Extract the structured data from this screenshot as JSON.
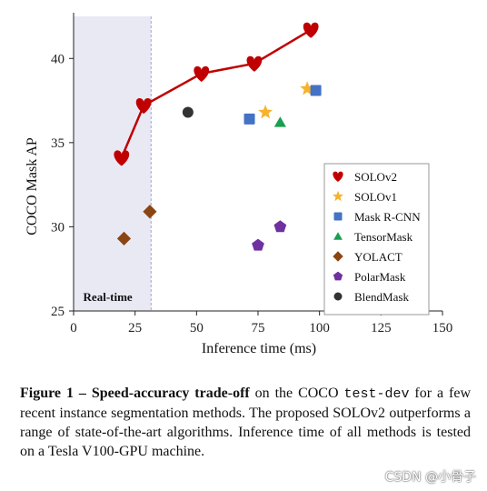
{
  "chart_data": {
    "type": "scatter",
    "xlabel": "Inference time (ms)",
    "ylabel": "COCO Mask AP",
    "xlim": [
      0,
      150
    ],
    "ylim": [
      25,
      42.5
    ],
    "xticks": [
      0,
      25,
      50,
      75,
      100,
      125,
      150
    ],
    "yticks": [
      25,
      30,
      35,
      40
    ],
    "grid": false,
    "legend_position": "right",
    "shaded_region": {
      "x_start": 0,
      "x_end": 31.5,
      "label": "Real-time",
      "fill": "#e9e9f4",
      "edge": "#9aa6d8"
    },
    "series": [
      {
        "name": "SOLOv2",
        "marker": "heart",
        "color": "#c00000",
        "line": true,
        "points": [
          [
            19.5,
            34.1
          ],
          [
            28.5,
            37.2
          ],
          [
            52.0,
            39.1
          ],
          [
            73.5,
            39.7
          ],
          [
            96.5,
            41.7
          ]
        ]
      },
      {
        "name": "SOLOv1",
        "marker": "star",
        "color": "#f7b32b",
        "points": [
          [
            78.0,
            36.8
          ],
          [
            95.0,
            38.2
          ]
        ]
      },
      {
        "name": "Mask R-CNN",
        "marker": "square",
        "color": "#4472c4",
        "points": [
          [
            71.5,
            36.4
          ],
          [
            98.5,
            38.1
          ]
        ]
      },
      {
        "name": "TensorMask",
        "marker": "triangle",
        "color": "#1a9e50",
        "points": [
          [
            84.0,
            36.2
          ]
        ]
      },
      {
        "name": "YOLACT",
        "marker": "diamond",
        "color": "#8b4513",
        "points": [
          [
            20.5,
            29.3
          ],
          [
            31.0,
            30.9
          ]
        ]
      },
      {
        "name": "PolarMask",
        "marker": "pentagon",
        "color": "#7030a0",
        "points": [
          [
            75.0,
            28.9
          ],
          [
            84.0,
            30.0
          ]
        ]
      },
      {
        "name": "BlendMask",
        "marker": "circle",
        "color": "#333333",
        "points": [
          [
            46.5,
            36.8
          ]
        ]
      }
    ]
  },
  "caption": {
    "figure_label": "Figure 1",
    "dash": " – ",
    "bold_title": "Speed-accuracy trade-off",
    "text_1": " on the COCO ",
    "mono_text": "test-dev",
    "text_2": " for a few recent instance segmentation methods. The proposed SOLOv2 outperforms a range of state-of-the-art algorithms. Inference time of all methods is tested on a Tesla V100-GPU machine."
  },
  "watermark": "CSDN @小骨子"
}
